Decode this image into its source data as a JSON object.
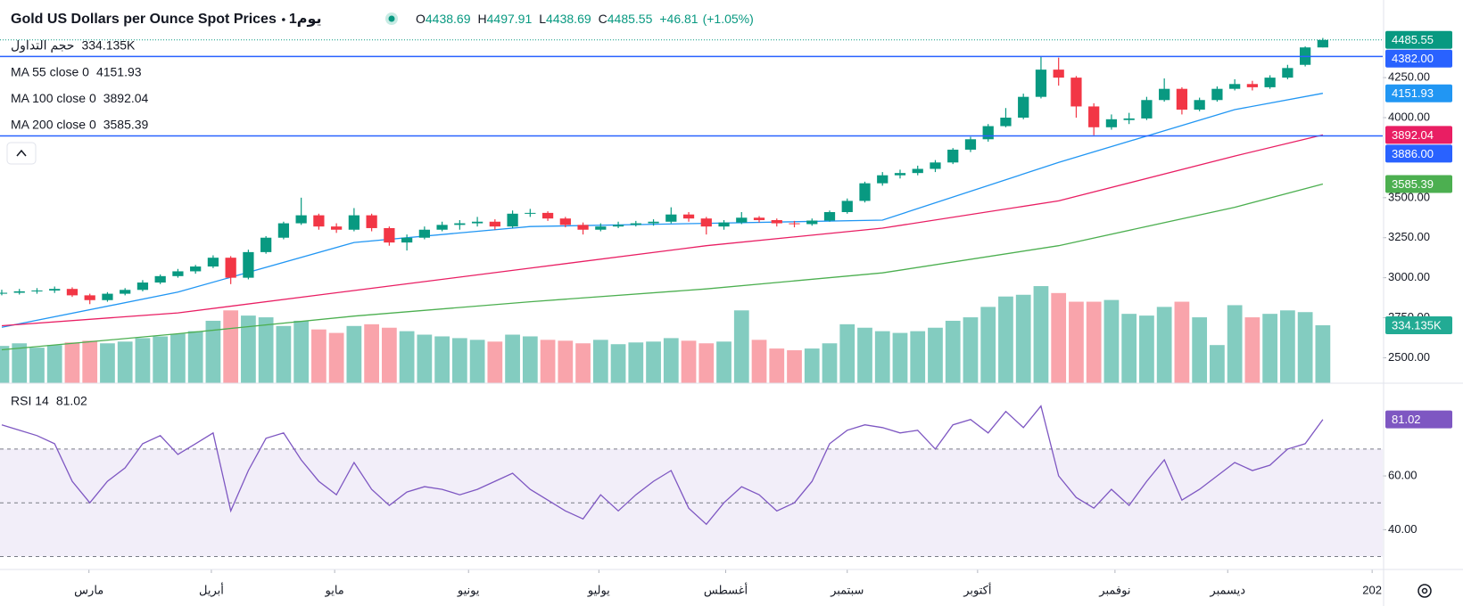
{
  "chart_data": {
    "type": "candlestick",
    "title": "Gold US Dollars per Ounce Spot Prices",
    "interval": "1يوم",
    "legend_ohlc": [
      {
        "key": "O",
        "value": 4438.69
      },
      {
        "key": "H",
        "value": 4497.91
      },
      {
        "key": "L",
        "value": 4438.69
      },
      {
        "key": "C",
        "value": 4485.55
      }
    ],
    "change": {
      "value": 46.81,
      "label": "+46.81"
    },
    "change_pct": {
      "value": 1.05,
      "label": "(+1.05%)"
    },
    "up_color": "#089981",
    "down_color": "#f23645",
    "candles": [
      [
        2900,
        2925,
        2890,
        2906
      ],
      [
        2906,
        2930,
        2895,
        2915
      ],
      [
        2915,
        2935,
        2900,
        2920
      ],
      [
        2920,
        2945,
        2905,
        2930
      ],
      [
        2930,
        2940,
        2880,
        2890
      ],
      [
        2890,
        2900,
        2835,
        2860
      ],
      [
        2860,
        2910,
        2850,
        2900
      ],
      [
        2900,
        2935,
        2890,
        2924
      ],
      [
        2924,
        2985,
        2915,
        2970
      ],
      [
        2970,
        3020,
        2960,
        3010
      ],
      [
        3010,
        3055,
        3000,
        3040
      ],
      [
        3040,
        3080,
        3025,
        3070
      ],
      [
        3070,
        3140,
        3060,
        3125
      ],
      [
        3125,
        3135,
        2960,
        3000
      ],
      [
        3000,
        3175,
        2990,
        3160
      ],
      [
        3160,
        3260,
        3150,
        3250
      ],
      [
        3250,
        3350,
        3240,
        3340
      ],
      [
        3340,
        3500,
        3330,
        3390
      ],
      [
        3390,
        3400,
        3300,
        3320
      ],
      [
        3320,
        3340,
        3280,
        3300
      ],
      [
        3300,
        3435,
        3290,
        3390
      ],
      [
        3390,
        3400,
        3290,
        3310
      ],
      [
        3310,
        3320,
        3200,
        3220
      ],
      [
        3220,
        3270,
        3170,
        3250
      ],
      [
        3250,
        3320,
        3240,
        3300
      ],
      [
        3300,
        3350,
        3290,
        3330
      ],
      [
        3330,
        3360,
        3300,
        3340
      ],
      [
        3340,
        3380,
        3320,
        3350
      ],
      [
        3350,
        3365,
        3300,
        3320
      ],
      [
        3320,
        3420,
        3310,
        3400
      ],
      [
        3400,
        3430,
        3380,
        3405
      ],
      [
        3405,
        3415,
        3355,
        3370
      ],
      [
        3370,
        3380,
        3315,
        3330
      ],
      [
        3330,
        3345,
        3270,
        3300
      ],
      [
        3300,
        3340,
        3290,
        3320
      ],
      [
        3320,
        3350,
        3310,
        3330
      ],
      [
        3330,
        3355,
        3320,
        3340
      ],
      [
        3340,
        3365,
        3325,
        3350
      ],
      [
        3350,
        3440,
        3340,
        3395
      ],
      [
        3395,
        3410,
        3350,
        3370
      ],
      [
        3370,
        3380,
        3270,
        3320
      ],
      [
        3320,
        3360,
        3300,
        3345
      ],
      [
        3345,
        3410,
        3335,
        3375
      ],
      [
        3375,
        3385,
        3345,
        3360
      ],
      [
        3360,
        3370,
        3320,
        3340
      ],
      [
        3340,
        3355,
        3315,
        3335
      ],
      [
        3335,
        3370,
        3325,
        3357
      ],
      [
        3357,
        3420,
        3350,
        3410
      ],
      [
        3410,
        3495,
        3400,
        3480
      ],
      [
        3480,
        3600,
        3470,
        3590
      ],
      [
        3590,
        3660,
        3575,
        3640
      ],
      [
        3640,
        3675,
        3620,
        3654
      ],
      [
        3654,
        3700,
        3640,
        3680
      ],
      [
        3680,
        3735,
        3660,
        3720
      ],
      [
        3720,
        3810,
        3710,
        3800
      ],
      [
        3800,
        3880,
        3785,
        3865
      ],
      [
        3865,
        3960,
        3850,
        3947
      ],
      [
        3947,
        4060,
        3940,
        4000
      ],
      [
        4000,
        4150,
        3990,
        4130
      ],
      [
        4130,
        4380,
        4120,
        4300
      ],
      [
        4300,
        4375,
        4200,
        4250
      ],
      [
        4250,
        4260,
        4000,
        4070
      ],
      [
        4070,
        4090,
        3890,
        3940
      ],
      [
        3940,
        4020,
        3925,
        3990
      ],
      [
        3985,
        4030,
        3960,
        3995
      ],
      [
        3995,
        4130,
        3985,
        4110
      ],
      [
        4110,
        4245,
        4100,
        4180
      ],
      [
        4180,
        4190,
        4020,
        4050
      ],
      [
        4050,
        4125,
        4040,
        4110
      ],
      [
        4110,
        4195,
        4100,
        4180
      ],
      [
        4180,
        4240,
        4170,
        4210
      ],
      [
        4210,
        4230,
        4170,
        4190
      ],
      [
        4190,
        4265,
        4180,
        4250
      ],
      [
        4250,
        4330,
        4240,
        4310
      ],
      [
        4330,
        4445,
        4320,
        4438.74
      ],
      [
        4438.69,
        4497.91,
        4438.69,
        4485.55
      ]
    ],
    "volume": {
      "name": "حجم التداول",
      "values": [
        215000,
        230000,
        205000,
        220000,
        235000,
        245000,
        230000,
        240000,
        260000,
        270000,
        285000,
        300000,
        360000,
        420000,
        390000,
        380000,
        330000,
        360000,
        310000,
        290000,
        330000,
        340000,
        320000,
        300000,
        280000,
        270000,
        260000,
        250000,
        240000,
        280000,
        270000,
        250000,
        245000,
        230000,
        250000,
        225000,
        235000,
        240000,
        260000,
        245000,
        230000,
        240000,
        420000,
        250000,
        200000,
        190000,
        200000,
        230000,
        340000,
        320000,
        300000,
        290000,
        300000,
        320000,
        360000,
        380000,
        440000,
        500000,
        510000,
        560000,
        520000,
        470000,
        470000,
        480000,
        400000,
        390000,
        440000,
        470000,
        380000,
        220000,
        450000,
        380000,
        400000,
        420000,
        410000,
        334135
      ],
      "last": {
        "value": 334135,
        "label": "334.135K"
      },
      "ylim": [
        0,
        2210000
      ]
    },
    "ma": [
      {
        "name": "MA 55 close 0",
        "color": "#2196f3",
        "x": [
          0,
          10,
          20,
          30,
          40,
          50,
          60,
          70,
          75
        ],
        "values": [
          2690,
          2910,
          3220,
          3320,
          3340,
          3360,
          3720,
          4050,
          4151.93
        ]
      },
      {
        "name": "MA 100 close 0",
        "color": "#e91e63",
        "x": [
          0,
          10,
          20,
          30,
          40,
          50,
          60,
          70,
          75
        ],
        "values": [
          2700,
          2780,
          2920,
          3060,
          3200,
          3310,
          3480,
          3760,
          3892.04
        ]
      },
      {
        "name": "MA 200 close 0",
        "color": "#4caf50",
        "x": [
          0,
          10,
          20,
          30,
          40,
          50,
          60,
          70,
          75
        ],
        "values": [
          2550,
          2650,
          2760,
          2850,
          2930,
          3030,
          3200,
          3440,
          3585.39
        ]
      }
    ],
    "hlines": [
      {
        "value": 4382,
        "label": "4382.00"
      },
      {
        "value": 3886,
        "label": "3886.00"
      }
    ],
    "hline_color": "#2962ff",
    "xlim": [
      -0.1,
      78.4
    ],
    "xticks": [
      {
        "value": 4.95,
        "label": "مارس"
      },
      {
        "value": 11.9,
        "label": "أبريل"
      },
      {
        "value": 18.9,
        "label": "مايو"
      },
      {
        "value": 26.5,
        "label": "يونيو"
      },
      {
        "value": 33.9,
        "label": "يوليو"
      },
      {
        "value": 41.1,
        "label": "أغسطس"
      },
      {
        "value": 48.0,
        "label": "سبتمبر"
      },
      {
        "value": 55.4,
        "label": "أكتوبر"
      },
      {
        "value": 63.2,
        "label": "نوفمبر"
      },
      {
        "value": 69.6,
        "label": "ديسمبر"
      },
      {
        "value": 77.8,
        "label": "202"
      }
    ],
    "ylim": [
      2341,
      4735
    ],
    "yticks": [
      {
        "value": 2500,
        "label": "2500.00"
      },
      {
        "value": 2750,
        "label": "2750.00"
      },
      {
        "value": 3000,
        "label": "3000.00"
      },
      {
        "value": 3250,
        "label": "3250.00"
      },
      {
        "value": 3500,
        "label": "3500.00"
      },
      {
        "value": 4000,
        "label": "4000.00"
      },
      {
        "value": 4250,
        "label": "4250.00"
      }
    ],
    "rsi": {
      "name": "RSI 14",
      "color": "#7e57c2",
      "values": [
        79,
        77,
        75,
        72,
        58,
        50,
        58,
        63,
        72,
        75,
        68,
        72,
        76,
        47,
        62,
        74,
        76,
        66,
        58,
        53,
        65,
        55,
        49,
        54,
        56,
        55,
        53,
        55,
        58,
        61,
        55,
        51,
        47,
        44,
        53,
        47,
        53,
        58,
        62,
        48,
        42,
        50,
        56,
        53,
        47,
        50,
        58,
        72,
        77,
        79,
        78,
        76,
        77,
        70,
        79,
        81,
        76,
        84,
        78,
        86,
        60,
        52,
        48,
        55,
        49,
        58,
        66,
        51,
        55,
        60,
        65,
        62,
        64,
        70,
        72,
        81.02
      ],
      "ylim": [
        25.2,
        94.5
      ],
      "yticks": [
        {
          "value": 40,
          "label": "40.00"
        },
        {
          "value": 60,
          "label": "60.00"
        }
      ],
      "levels": [
        30,
        50,
        70
      ]
    }
  }
}
